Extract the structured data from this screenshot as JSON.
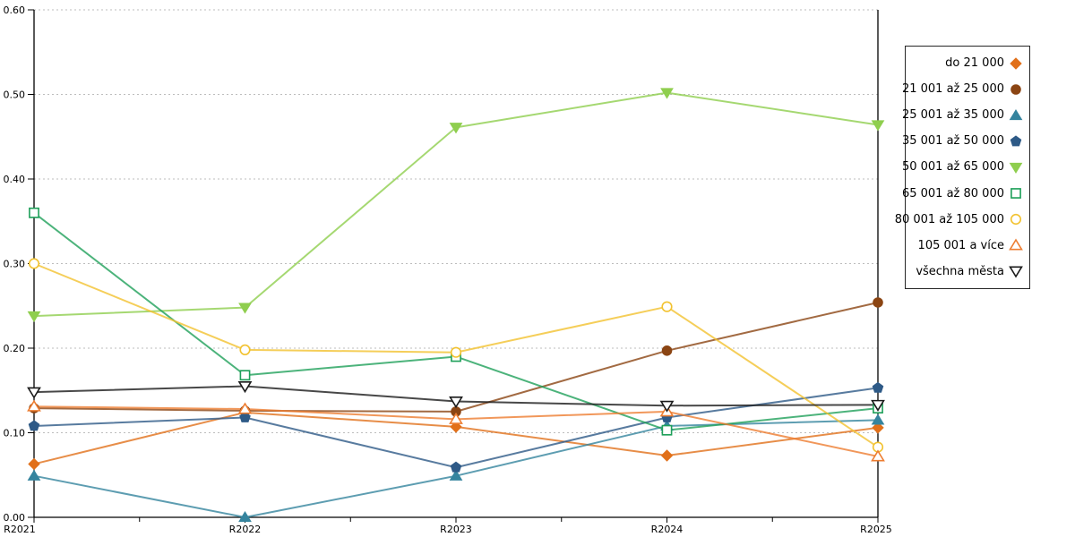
{
  "chart_data": {
    "type": "line",
    "categories": [
      "R2021",
      "R2022",
      "R2023",
      "R2024",
      "R2025"
    ],
    "title": "",
    "xlabel": "",
    "ylabel": "",
    "ylim": [
      0,
      0.6
    ],
    "ytick_step": 0.1,
    "ytick_labels": [
      "0.00",
      "0.10",
      "0.20",
      "0.30",
      "0.40",
      "0.50",
      "0.60"
    ],
    "grid": "horizontal-dashed",
    "legend_position": "right-outside",
    "series": [
      {
        "name": "do 21 000",
        "marker": "diamond",
        "filled": true,
        "color": "#E1701A",
        "values": [
          0.063,
          0.124,
          0.107,
          0.073,
          0.106
        ]
      },
      {
        "name": "21 001 až 25 000",
        "marker": "circle",
        "filled": true,
        "color": "#8B4513",
        "values": [
          0.129,
          0.126,
          0.125,
          0.197,
          0.254
        ]
      },
      {
        "name": "25 001 až 35 000",
        "marker": "triangle-up",
        "filled": true,
        "color": "#35849E",
        "values": [
          0.049,
          0.0,
          0.049,
          0.108,
          0.115
        ]
      },
      {
        "name": "35 001 až 50 000",
        "marker": "pentagon",
        "filled": true,
        "color": "#2E5A87",
        "values": [
          0.108,
          0.118,
          0.059,
          0.118,
          0.153
        ]
      },
      {
        "name": "50 001 až 65 000",
        "marker": "triangle-down",
        "filled": true,
        "color": "#8FCE4E",
        "values": [
          0.238,
          0.248,
          0.461,
          0.502,
          0.464
        ]
      },
      {
        "name": "65 001 až 80 000",
        "marker": "square",
        "filled": false,
        "color": "#1FA05A",
        "values": [
          0.36,
          0.168,
          0.19,
          0.103,
          0.129
        ]
      },
      {
        "name": "80 001 až 105 000",
        "marker": "circle",
        "filled": false,
        "color": "#F2C230",
        "values": [
          0.3,
          0.198,
          0.195,
          0.249,
          0.083
        ]
      },
      {
        "name": "105 001 a více",
        "marker": "triangle-up",
        "filled": false,
        "color": "#ED7D31",
        "values": [
          0.131,
          0.128,
          0.116,
          0.125,
          0.072
        ]
      },
      {
        "name": "všechna města",
        "marker": "triangle-down",
        "filled": false,
        "color": "#1A1A1A",
        "values": [
          0.148,
          0.155,
          0.137,
          0.132,
          0.133
        ]
      }
    ],
    "colors": {
      "axis": "#000000",
      "grid": "#BDBDBD",
      "background": "#FFFFFF",
      "legend_border": "#262626"
    }
  }
}
